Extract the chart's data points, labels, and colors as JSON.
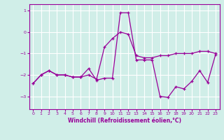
{
  "background_color": "#d0eee8",
  "line_color": "#990099",
  "grid_color": "#ffffff",
  "xlabel": "Windchill (Refroidissement éolien,°C)",
  "xlim": [
    -0.5,
    23.5
  ],
  "ylim": [
    -3.6,
    1.3
  ],
  "yticks": [
    1,
    0,
    -1,
    -2,
    -3
  ],
  "xticks": [
    0,
    1,
    2,
    3,
    4,
    5,
    6,
    7,
    8,
    9,
    10,
    11,
    12,
    13,
    14,
    15,
    16,
    17,
    18,
    19,
    20,
    21,
    22,
    23
  ],
  "series1_x": [
    0,
    1,
    2,
    3,
    4,
    5,
    6,
    7,
    8,
    9,
    10,
    11,
    12,
    13,
    14,
    15,
    16,
    17,
    18,
    19,
    20,
    21,
    22,
    23
  ],
  "series1_y": [
    -2.4,
    -2.0,
    -1.8,
    -2.0,
    -2.0,
    -2.1,
    -2.1,
    -2.0,
    -2.2,
    -0.7,
    -0.3,
    0.0,
    -0.1,
    -1.1,
    -1.2,
    -1.2,
    -1.1,
    -1.1,
    -1.0,
    -1.0,
    -1.0,
    -0.9,
    -0.9,
    -1.0
  ],
  "series2_x": [
    0,
    1,
    2,
    3,
    4,
    5,
    6,
    7,
    8,
    9,
    10,
    11,
    12,
    13,
    14,
    15,
    16,
    17,
    18,
    19,
    20,
    21,
    22,
    23
  ],
  "series2_y": [
    -2.4,
    -2.0,
    -1.8,
    -2.0,
    -2.0,
    -2.1,
    -2.1,
    -1.7,
    -2.25,
    -2.15,
    -2.15,
    0.9,
    0.9,
    -1.3,
    -1.3,
    -1.3,
    -3.0,
    -3.05,
    -2.55,
    -2.65,
    -2.3,
    -1.8,
    -2.35,
    -1.05
  ]
}
